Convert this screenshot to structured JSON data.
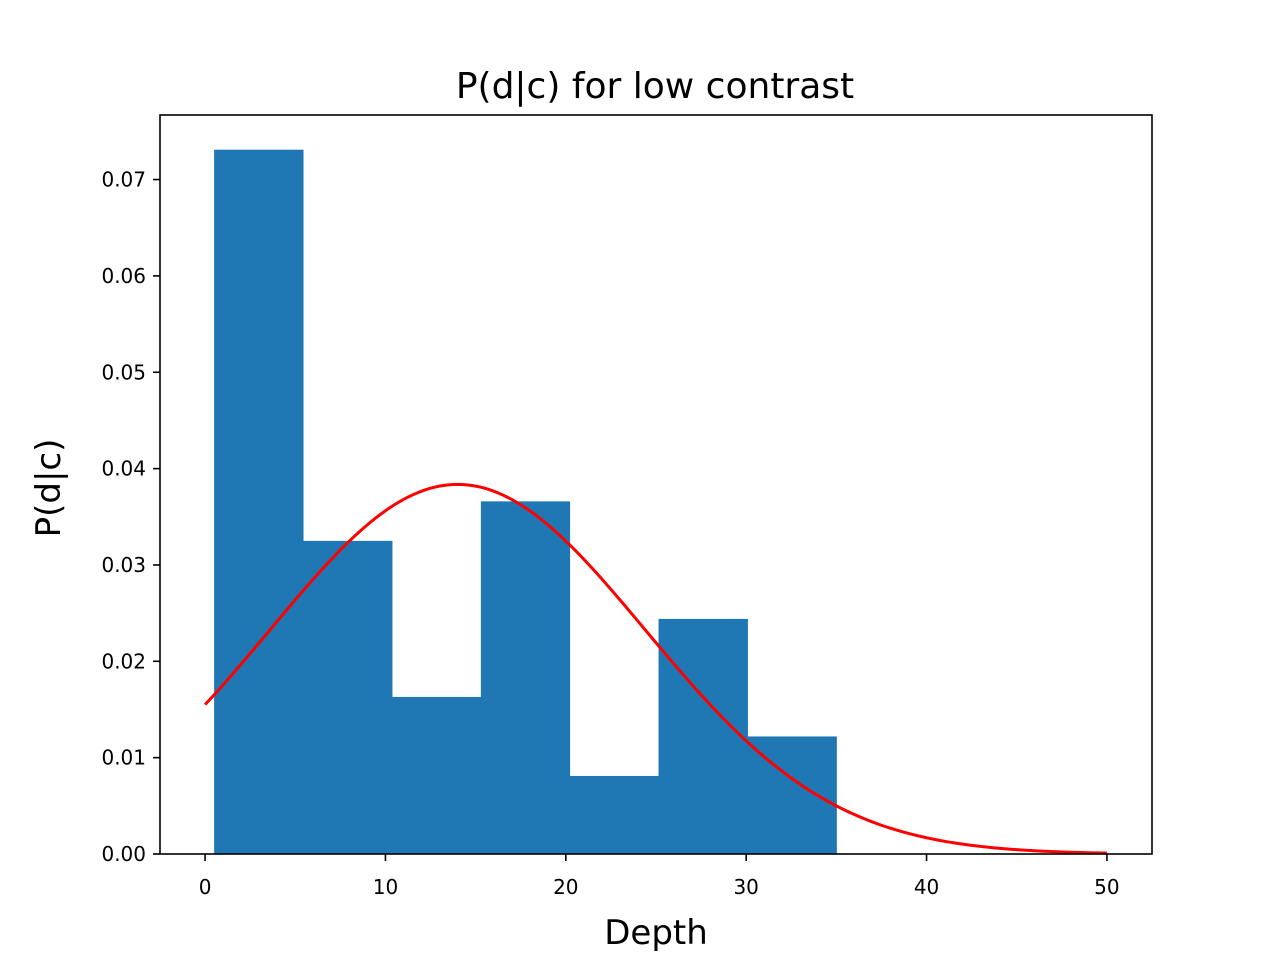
{
  "chart_data": {
    "type": "bar",
    "title": "P(d|c) for low contrast",
    "xlabel": "Depth",
    "ylabel": "P(d|c)",
    "xlim": [
      -2.5,
      52.5
    ],
    "ylim": [
      0,
      0.0767
    ],
    "xticks": [
      0,
      10,
      20,
      30,
      40,
      50
    ],
    "xtick_labels": [
      "0",
      "10",
      "20",
      "30",
      "40",
      "50"
    ],
    "yticks": [
      0,
      0.01,
      0.02,
      0.03,
      0.04,
      0.05,
      0.06,
      0.07
    ],
    "ytick_labels": [
      "0.00",
      "0.01",
      "0.02",
      "0.03",
      "0.04",
      "0.05",
      "0.06",
      "0.07"
    ],
    "grid": false,
    "histogram": {
      "bin_edges": [
        0.5,
        5.43,
        10.36,
        15.29,
        20.21,
        25.14,
        30.07,
        35.0
      ],
      "values": [
        0.0731,
        0.0325,
        0.0163,
        0.0366,
        0.0081,
        0.0244,
        0.0122
      ],
      "color": "#1f77b4"
    },
    "curve": {
      "type": "normal_pdf",
      "mean": 14.0,
      "std": 10.4,
      "x_range": [
        0,
        50
      ],
      "color": "#ff0000"
    }
  }
}
